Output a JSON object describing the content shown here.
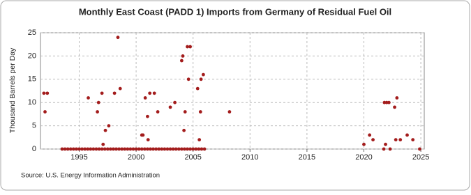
{
  "chart_data": {
    "type": "scatter",
    "title": "Monthly East Coast (PADD 1) Imports from Germany of Residual Fuel Oil",
    "y_label": "Thousand Barrels per Day",
    "source": "Source: U.S. Energy Information Administration",
    "xlim": [
      1991.6,
      2025.3
    ],
    "xticks": [
      1995,
      2000,
      2005,
      2010,
      2015,
      2020,
      2025
    ],
    "ylim": [
      0,
      25
    ],
    "yticks": [
      0,
      5,
      10,
      15,
      20,
      25
    ],
    "grid": true,
    "series": [
      {
        "name": "Imports",
        "color": "#a31c1c",
        "x": [
          1991.9,
          1992.0,
          1992.2,
          1995.8,
          1996.6,
          1996.7,
          1997.0,
          1997.1,
          1997.3,
          1997.6,
          1998.1,
          1998.4,
          1998.6,
          2000.5,
          2000.6,
          2000.8,
          2001.0,
          2001.05,
          2001.2,
          2001.6,
          2001.9,
          2003.0,
          2003.4,
          2004.0,
          2004.1,
          2004.2,
          2004.3,
          2004.5,
          2004.6,
          2004.75,
          2005.4,
          2005.55,
          2005.65,
          2005.7,
          2005.9,
          2008.2,
          2020.0,
          2020.5,
          2020.8,
          2021.75,
          2021.8,
          2021.9,
          2022.0,
          2022.2,
          2022.3,
          2022.7,
          2022.8,
          2022.9,
          2023.2,
          2023.8,
          2024.3,
          2024.9,
          1993.5,
          1993.75,
          1994.0,
          1994.25,
          1994.5,
          1994.75,
          1995.0,
          1995.25,
          1995.5,
          1995.75,
          1996.0,
          1996.25,
          1996.5,
          1996.75,
          1997.0,
          1997.25,
          1997.5,
          1997.75,
          1998.0,
          1998.25,
          1998.5,
          1998.75,
          1999.0,
          1999.25,
          1999.5,
          1999.75,
          2000.0,
          2000.25,
          2000.5,
          2000.75,
          2001.0,
          2001.25,
          2001.5,
          2001.75,
          2002.0,
          2002.25,
          2002.5,
          2002.75,
          2003.0,
          2003.25,
          2003.5,
          2003.75,
          2004.0,
          2004.25,
          2004.5,
          2004.75,
          2005.0,
          2005.25,
          2005.5,
          2005.75,
          2006.0
        ],
        "values": [
          12,
          8,
          12,
          11,
          8,
          10,
          12,
          1,
          4,
          5,
          12,
          24,
          13,
          3,
          3,
          11,
          7,
          2,
          12,
          12,
          8,
          9,
          10,
          19,
          20,
          4,
          8,
          22,
          15,
          22,
          13,
          2,
          8,
          15,
          16,
          8,
          1,
          3,
          2,
          0,
          10,
          1,
          10,
          10,
          0,
          9,
          2,
          11,
          2,
          3,
          2,
          0,
          0,
          0,
          0,
          0,
          0,
          0,
          0,
          0,
          0,
          0,
          0,
          0,
          0,
          0,
          0,
          0,
          0,
          0,
          0,
          0,
          0,
          0,
          0,
          0,
          0,
          0,
          0,
          0,
          0,
          0,
          0,
          0,
          0,
          0,
          0,
          0,
          0,
          0,
          0,
          0,
          0,
          0,
          0,
          0,
          0,
          0,
          0,
          0,
          0,
          0,
          0
        ]
      }
    ]
  }
}
